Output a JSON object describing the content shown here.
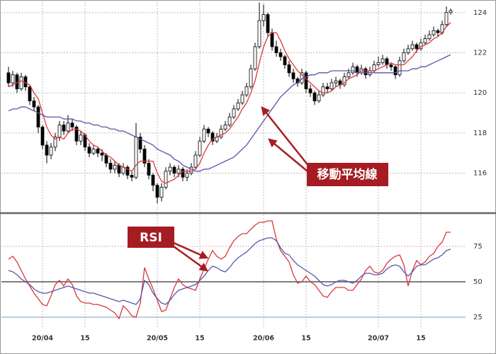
{
  "chart_data": [
    {
      "type": "candlestick",
      "annotation": "移動平均線",
      "up_color": "#ffffff",
      "down_color": "#000000",
      "ylim": [
        114.4,
        124.45
      ],
      "yticks": [
        116,
        118,
        120,
        122,
        124
      ],
      "grid": true,
      "ohlc": [
        [
          121.0,
          121.3,
          120.3,
          120.5
        ],
        [
          120.5,
          121.1,
          120.3,
          120.9
        ],
        [
          120.9,
          121.0,
          120.0,
          120.2
        ],
        [
          120.2,
          121.0,
          120.1,
          120.8
        ],
        [
          120.8,
          120.9,
          120.1,
          120.3
        ],
        [
          120.3,
          120.4,
          119.4,
          119.6
        ],
        [
          119.6,
          119.8,
          119.1,
          119.3
        ],
        [
          119.3,
          119.4,
          118.0,
          118.3
        ],
        [
          118.3,
          118.4,
          117.2,
          117.4
        ],
        [
          117.4,
          117.6,
          116.5,
          116.9
        ],
        [
          116.9,
          117.5,
          116.7,
          117.3
        ],
        [
          117.3,
          118.0,
          117.1,
          117.8
        ],
        [
          117.8,
          118.6,
          117.6,
          118.4
        ],
        [
          118.4,
          118.6,
          117.9,
          118.1
        ],
        [
          118.1,
          118.9,
          118.0,
          118.5
        ],
        [
          118.5,
          118.7,
          118.1,
          118.3
        ],
        [
          118.3,
          118.4,
          117.4,
          117.6
        ],
        [
          117.6,
          118.1,
          117.4,
          117.9
        ],
        [
          117.9,
          118.0,
          117.1,
          117.3
        ],
        [
          117.3,
          117.5,
          116.8,
          117.0
        ],
        [
          117.0,
          117.4,
          116.9,
          117.2
        ],
        [
          117.2,
          117.3,
          116.8,
          117.0
        ],
        [
          117.0,
          117.2,
          116.6,
          116.9
        ],
        [
          116.9,
          117.0,
          116.3,
          116.5
        ],
        [
          116.5,
          116.7,
          116.0,
          116.2
        ],
        [
          116.2,
          116.6,
          116.0,
          116.4
        ],
        [
          116.4,
          116.5,
          115.8,
          116.0
        ],
        [
          116.0,
          116.5,
          115.9,
          116.3
        ],
        [
          116.3,
          116.4,
          115.7,
          115.9
        ],
        [
          115.9,
          116.1,
          115.6,
          115.8
        ],
        [
          115.8,
          118.5,
          115.7,
          117.8
        ],
        [
          117.8,
          118.0,
          117.0,
          117.2
        ],
        [
          117.2,
          117.4,
          116.3,
          116.5
        ],
        [
          116.5,
          116.7,
          115.7,
          115.9
        ],
        [
          115.9,
          116.0,
          115.1,
          115.4
        ],
        [
          115.4,
          115.5,
          114.5,
          114.8
        ],
        [
          114.8,
          115.5,
          114.6,
          115.3
        ],
        [
          115.3,
          116.3,
          115.2,
          116.1
        ],
        [
          116.1,
          116.5,
          115.9,
          116.3
        ],
        [
          116.3,
          116.4,
          115.8,
          116.0
        ],
        [
          116.0,
          116.4,
          115.8,
          116.2
        ],
        [
          116.2,
          116.3,
          115.6,
          115.8
        ],
        [
          115.8,
          116.2,
          115.6,
          116.0
        ],
        [
          116.0,
          116.5,
          115.9,
          116.3
        ],
        [
          116.3,
          117.1,
          116.2,
          116.9
        ],
        [
          116.9,
          117.8,
          116.8,
          117.6
        ],
        [
          117.6,
          118.4,
          117.5,
          118.2
        ],
        [
          118.2,
          118.3,
          117.8,
          118.0
        ],
        [
          118.0,
          118.1,
          117.4,
          117.6
        ],
        [
          117.6,
          118.0,
          117.5,
          117.8
        ],
        [
          117.8,
          118.4,
          117.7,
          118.2
        ],
        [
          118.2,
          118.6,
          118.1,
          118.4
        ],
        [
          118.4,
          119.0,
          118.3,
          118.8
        ],
        [
          118.8,
          119.4,
          118.7,
          119.2
        ],
        [
          119.2,
          119.7,
          119.1,
          119.5
        ],
        [
          119.5,
          120.1,
          119.4,
          119.9
        ],
        [
          119.9,
          120.5,
          119.8,
          120.3
        ],
        [
          120.3,
          121.4,
          120.2,
          121.2
        ],
        [
          121.2,
          122.5,
          121.1,
          122.3
        ],
        [
          122.3,
          124.5,
          122.2,
          123.6
        ],
        [
          123.6,
          124.4,
          123.3,
          123.9
        ],
        [
          123.9,
          124.0,
          122.8,
          123.0
        ],
        [
          123.0,
          123.2,
          122.1,
          122.3
        ],
        [
          122.3,
          122.6,
          121.8,
          122.0
        ],
        [
          122.0,
          122.2,
          121.6,
          121.8
        ],
        [
          121.8,
          121.9,
          121.2,
          121.4
        ],
        [
          121.4,
          121.6,
          120.8,
          121.0
        ],
        [
          121.0,
          121.2,
          120.5,
          120.7
        ],
        [
          120.7,
          120.8,
          120.3,
          120.5
        ],
        [
          120.5,
          121.2,
          120.4,
          121.0
        ],
        [
          121.0,
          121.1,
          120.0,
          120.2
        ],
        [
          120.2,
          120.4,
          119.8,
          120.0
        ],
        [
          120.0,
          120.1,
          119.4,
          119.6
        ],
        [
          119.6,
          120.1,
          119.5,
          119.9
        ],
        [
          119.9,
          120.5,
          119.8,
          120.3
        ],
        [
          120.3,
          120.5,
          120.0,
          120.2
        ],
        [
          120.2,
          120.7,
          120.1,
          120.5
        ],
        [
          120.5,
          120.8,
          120.3,
          120.6
        ],
        [
          120.6,
          120.7,
          120.2,
          120.4
        ],
        [
          120.4,
          121.0,
          120.3,
          120.8
        ],
        [
          120.8,
          121.2,
          120.7,
          121.0
        ],
        [
          121.0,
          121.5,
          120.9,
          121.3
        ],
        [
          121.3,
          121.4,
          120.8,
          121.0
        ],
        [
          121.0,
          121.4,
          120.9,
          121.2
        ],
        [
          121.2,
          121.3,
          120.7,
          120.9
        ],
        [
          120.9,
          121.3,
          120.8,
          121.1
        ],
        [
          121.1,
          121.6,
          121.0,
          121.4
        ],
        [
          121.4,
          121.8,
          121.3,
          121.5
        ],
        [
          121.5,
          121.9,
          121.4,
          121.7
        ],
        [
          121.7,
          121.8,
          121.2,
          121.4
        ],
        [
          121.4,
          121.5,
          121.1,
          121.3
        ],
        [
          121.3,
          121.4,
          120.7,
          120.9
        ],
        [
          120.9,
          121.8,
          120.8,
          121.6
        ],
        [
          121.6,
          122.2,
          121.5,
          122.0
        ],
        [
          122.0,
          122.4,
          121.9,
          122.2
        ],
        [
          122.2,
          122.6,
          122.1,
          122.4
        ],
        [
          122.4,
          122.5,
          122.0,
          122.2
        ],
        [
          122.2,
          122.7,
          122.1,
          122.5
        ],
        [
          122.5,
          122.9,
          122.4,
          122.7
        ],
        [
          122.7,
          123.1,
          122.6,
          122.9
        ],
        [
          122.9,
          123.3,
          122.8,
          123.1
        ],
        [
          123.1,
          123.2,
          122.8,
          123.0
        ],
        [
          123.0,
          123.6,
          122.9,
          123.4
        ],
        [
          123.4,
          124.3,
          123.3,
          124.0
        ],
        [
          124.0,
          124.2,
          123.9,
          124.1
        ]
      ],
      "series": [
        {
          "color": "#d9383a",
          "values": [
            120.3,
            120.4,
            120.5,
            120.6,
            120.5,
            120.4,
            120.0,
            119.7,
            119.0,
            118.3,
            117.9,
            117.7,
            117.8,
            117.7,
            118.0,
            118.2,
            118.2,
            118.1,
            117.9,
            117.6,
            117.4,
            117.3,
            117.1,
            116.9,
            116.8,
            116.6,
            116.4,
            116.3,
            116.2,
            116.1,
            116.4,
            116.6,
            116.6,
            116.6,
            116.6,
            116.0,
            115.6,
            115.5,
            115.6,
            115.7,
            115.9,
            116.1,
            116.1,
            116.1,
            116.2,
            116.5,
            117.0,
            117.4,
            117.7,
            117.8,
            117.9,
            118.0,
            118.2,
            118.5,
            118.8,
            119.2,
            119.5,
            120.0,
            120.6,
            121.5,
            122.3,
            122.8,
            123.0,
            123.0,
            122.6,
            122.1,
            121.7,
            121.4,
            121.1,
            120.9,
            120.7,
            120.5,
            120.3,
            120.1,
            120.0,
            120.0,
            120.1,
            120.3,
            120.4,
            120.5,
            120.7,
            120.8,
            120.9,
            121.1,
            121.1,
            121.1,
            121.1,
            121.2,
            121.3,
            121.4,
            121.5,
            121.4,
            121.4,
            121.4,
            121.6,
            121.8,
            122.1,
            122.3,
            122.4,
            122.5,
            122.7,
            122.8,
            123.0,
            123.3,
            123.5
          ]
        },
        {
          "color": "#5a55a8",
          "values": [
            119.1,
            119.2,
            119.2,
            119.3,
            119.3,
            119.2,
            119.1,
            119.0,
            118.9,
            118.8,
            118.8,
            118.8,
            118.8,
            118.7,
            118.7,
            118.7,
            118.6,
            118.6,
            118.5,
            118.5,
            118.4,
            118.4,
            118.3,
            118.3,
            118.2,
            118.2,
            118.1,
            118.1,
            118.0,
            117.9,
            117.8,
            117.7,
            117.6,
            117.5,
            117.4,
            117.2,
            117.1,
            117.0,
            116.9,
            116.7,
            116.6,
            116.4,
            116.3,
            116.2,
            116.1,
            116.1,
            116.2,
            116.2,
            116.3,
            116.4,
            116.5,
            116.6,
            116.7,
            116.8,
            117.0,
            117.2,
            117.4,
            117.7,
            118.0,
            118.3,
            118.6,
            118.9,
            119.2,
            119.5,
            119.8,
            120.0,
            120.2,
            120.4,
            120.5,
            120.7,
            120.8,
            120.9,
            120.9,
            121.0,
            121.0,
            121.0,
            121.1,
            121.1,
            121.1,
            121.1,
            121.1,
            121.1,
            121.0,
            121.0,
            121.0,
            121.0,
            121.0,
            121.0,
            121.0,
            121.0,
            121.0,
            121.0,
            121.1,
            121.1,
            121.1,
            121.2,
            121.2,
            121.3,
            121.3,
            121.4,
            121.5,
            121.6,
            121.7,
            121.8,
            121.9
          ]
        }
      ]
    },
    {
      "type": "line",
      "annotation": "RSI",
      "ylim": [
        17.5,
        96.5
      ],
      "yticks": [
        25,
        50,
        75
      ],
      "grid_colors": [
        "#7aa0b8",
        "#555555",
        "#e6a3b5"
      ],
      "categories": [
        null,
        null,
        null,
        null,
        null,
        null,
        null,
        null,
        "20/04",
        null,
        null,
        null,
        null,
        null,
        null,
        null,
        null,
        null,
        "15",
        null,
        null,
        null,
        null,
        null,
        null,
        null,
        null,
        null,
        null,
        null,
        null,
        null,
        null,
        null,
        null,
        "20/05",
        null,
        null,
        null,
        null,
        null,
        null,
        null,
        null,
        null,
        "15",
        null,
        null,
        null,
        null,
        null,
        null,
        null,
        null,
        null,
        null,
        null,
        null,
        null,
        null,
        "20/06",
        null,
        null,
        null,
        null,
        null,
        null,
        null,
        null,
        null,
        "15",
        null,
        null,
        null,
        null,
        null,
        null,
        null,
        null,
        null,
        null,
        null,
        null,
        null,
        null,
        null,
        null,
        "20/07",
        null,
        null,
        null,
        null,
        null,
        null,
        null,
        null,
        null,
        "15",
        null,
        null,
        null,
        null,
        null,
        null,
        null
      ],
      "series": [
        {
          "color": "#d9383a",
          "values": [
            66,
            68,
            64,
            58,
            52,
            47,
            42,
            38,
            34,
            33,
            40,
            48,
            51,
            47,
            52,
            48,
            40,
            36,
            35,
            35,
            34,
            34,
            33,
            32,
            30,
            28,
            24,
            33,
            30,
            26,
            25,
            35,
            60,
            52,
            45,
            37,
            29,
            30,
            38,
            46,
            52,
            48,
            46,
            45,
            44,
            52,
            59,
            66,
            72,
            68,
            66,
            68,
            74,
            79,
            82,
            84,
            84,
            87,
            90,
            92,
            92,
            93,
            93,
            80,
            72,
            68,
            64,
            55,
            49,
            50,
            54,
            50,
            48,
            44,
            40,
            39,
            43,
            46,
            46,
            46,
            44,
            44,
            48,
            52,
            58,
            61,
            57,
            56,
            58,
            63,
            66,
            68,
            69,
            62,
            47,
            58,
            65,
            62,
            64,
            68,
            70,
            75,
            78,
            85,
            85
          ]
        },
        {
          "color": "#5a55a8",
          "values": [
            58,
            57,
            55,
            52,
            50,
            48,
            45,
            43,
            42,
            42,
            43,
            44,
            45,
            46,
            47,
            46,
            45,
            44,
            43,
            42,
            42,
            41,
            40,
            39,
            38,
            37,
            36,
            37,
            36,
            35,
            34,
            38,
            51,
            48,
            42,
            38,
            35,
            34,
            37,
            41,
            44,
            45,
            46,
            47,
            48,
            51,
            54,
            58,
            61,
            60,
            58,
            57,
            60,
            64,
            67,
            69,
            71,
            74,
            77,
            79,
            80,
            81,
            81,
            79,
            74,
            70,
            69,
            65,
            62,
            60,
            58,
            56,
            54,
            51,
            48,
            47,
            48,
            50,
            51,
            51,
            50,
            49,
            51,
            54,
            56,
            56,
            55,
            55,
            56,
            59,
            61,
            62,
            61,
            57,
            54,
            57,
            61,
            62,
            62,
            64,
            66,
            67,
            69,
            72,
            73
          ]
        }
      ]
    }
  ]
}
